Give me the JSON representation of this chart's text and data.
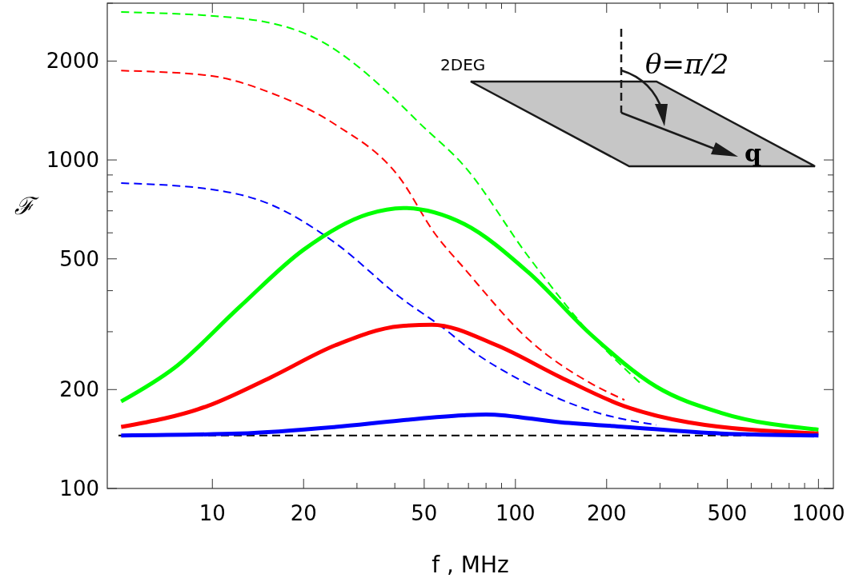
{
  "chart_data": {
    "type": "line",
    "xlabel": "f , MHz",
    "ylabel": "ℱ",
    "log": "xy",
    "xlim": [
      4.5,
      1120
    ],
    "ylim": [
      100,
      3000
    ],
    "xticks": [
      10,
      20,
      50,
      100,
      200,
      500,
      1000,
      {
        "value": 30,
        "label": null
      },
      {
        "value": 40,
        "label": null
      },
      {
        "value": 60,
        "label": null
      },
      {
        "value": 70,
        "label": null
      },
      {
        "value": 80,
        "label": null
      },
      {
        "value": 90,
        "label": null
      },
      {
        "value": 300,
        "label": null
      },
      {
        "value": 400,
        "label": null
      },
      {
        "value": 600,
        "label": null
      },
      {
        "value": 700,
        "label": null
      },
      {
        "value": 800,
        "label": null
      },
      {
        "value": 900,
        "label": null
      }
    ],
    "yticks": [
      100,
      200,
      500,
      1000,
      2000,
      {
        "value": 300,
        "label": null
      },
      {
        "value": 400,
        "label": null
      },
      {
        "value": 600,
        "label": null
      },
      {
        "value": 700,
        "label": null
      },
      {
        "value": 800,
        "label": null
      },
      {
        "value": 900,
        "label": null
      },
      {
        "value": 3000,
        "label": null
      }
    ],
    "grid": false,
    "series": [
      {
        "color": "#00ff00",
        "line_style": "dashed",
        "x": [
          5,
          12.3,
          23,
          41,
          48,
          68,
          110,
          179,
          260
        ],
        "values": [
          2820,
          2700,
          2290,
          1500,
          1300,
          955,
          510,
          292,
          208
        ]
      },
      {
        "color": "#ff0000",
        "line_style": "dashed",
        "x": [
          5,
          9.6,
          15.6,
          25.5,
          41.6,
          54,
          68,
          110,
          179,
          229
        ],
        "values": [
          1870,
          1810,
          1600,
          1280,
          880,
          600,
          466,
          285,
          208,
          186
        ]
      },
      {
        "color": "#0000ff",
        "line_style": "dashed",
        "x": [
          5,
          9.6,
          15.6,
          25.5,
          41.6,
          60,
          68,
          110,
          179,
          292
        ],
        "values": [
          850,
          817,
          731,
          558,
          382,
          300,
          273,
          208,
          172,
          156
        ]
      },
      {
        "color": "#00ff00",
        "line_style": "solid",
        "x": [
          5,
          7.5,
          12.3,
          20,
          32.6,
          42.7,
          67.8,
          110,
          179,
          292,
          476,
          1000
        ],
        "values": [
          184,
          233,
          357,
          533,
          684,
          714,
          638,
          456,
          292,
          204,
          170,
          151
        ]
      },
      {
        "color": "#ff0000",
        "line_style": "solid",
        "x": [
          5,
          9.6,
          15.6,
          25.5,
          41.6,
          53,
          86.6,
          141,
          229,
          372,
          1000
        ],
        "values": [
          154,
          178,
          218,
          273,
          312,
          315,
          273,
          218,
          178,
          159,
          147
        ]
      },
      {
        "color": "#0000ff",
        "line_style": "solid",
        "x": [
          5,
          12.3,
          25.5,
          41.6,
          67,
          80,
          141,
          229,
          476,
          1000
        ],
        "values": [
          145,
          147,
          154,
          161,
          167,
          168,
          159,
          154,
          147,
          145
        ]
      }
    ],
    "ref_lines": [
      {
        "axis": "y",
        "value": 145,
        "color": "#000000",
        "line_style": "dashed"
      }
    ],
    "annotations": [
      "2DEG",
      "θ=π/2",
      "q"
    ]
  }
}
